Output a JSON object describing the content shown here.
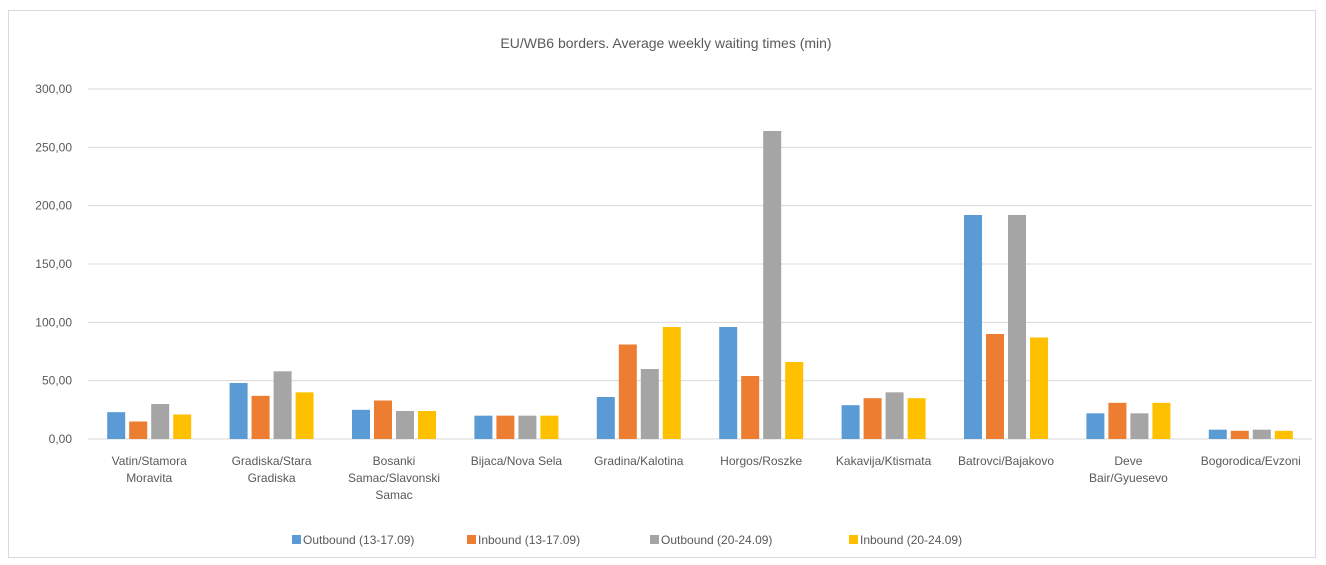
{
  "chart_data": {
    "type": "bar",
    "title": "EU/WB6 borders. Average weekly waiting times (min)",
    "xlabel": "",
    "ylabel": "",
    "ylim": [
      0,
      300
    ],
    "yticks": [
      "0,00",
      "50,00",
      "100,00",
      "150,00",
      "200,00",
      "250,00",
      "300,00"
    ],
    "grid": true,
    "legend_position": "bottom",
    "categories": [
      "Vatin/Stamora Moravita",
      "Gradiska/Stara Gradiska",
      "Bosanki Samac/Slavonski Samac",
      "Bijaca/Nova Sela",
      "Gradina/Kalotina",
      "Horgos/Roszke",
      "Kakavija/Ktismata",
      "Batrovci/Bajakovo",
      "Deve Bair/Gyuesevo",
      "Bogorodica/Evzoni"
    ],
    "category_lines": [
      [
        "Vatin/Stamora",
        "Moravita"
      ],
      [
        "Gradiska/Stara",
        "Gradiska"
      ],
      [
        "Bosanki",
        "Samac/Slavonski",
        "Samac"
      ],
      [
        "Bijaca/Nova Sela"
      ],
      [
        "Gradina/Kalotina"
      ],
      [
        "Horgos/Roszke"
      ],
      [
        "Kakavija/Ktismata"
      ],
      [
        "Batrovci/Bajakovo"
      ],
      [
        "Deve",
        "Bair/Gyuesevo"
      ],
      [
        "Bogorodica/Evzoni"
      ]
    ],
    "series": [
      {
        "name": "Outbound (13-17.09)",
        "color": "#5b9bd5",
        "values": [
          23,
          48,
          25,
          20,
          36,
          96,
          29,
          192,
          22,
          8
        ]
      },
      {
        "name": "Inbound (13-17.09)",
        "color": "#ed7d31",
        "values": [
          15,
          37,
          33,
          20,
          81,
          54,
          35,
          90,
          31,
          7
        ]
      },
      {
        "name": "Outbound (20-24.09)",
        "color": "#a5a5a5",
        "values": [
          30,
          58,
          24,
          20,
          60,
          264,
          40,
          192,
          22,
          8
        ]
      },
      {
        "name": "Inbound (20-24.09)",
        "color": "#ffc000",
        "values": [
          21,
          40,
          24,
          20,
          96,
          66,
          35,
          87,
          31,
          7
        ]
      }
    ]
  }
}
